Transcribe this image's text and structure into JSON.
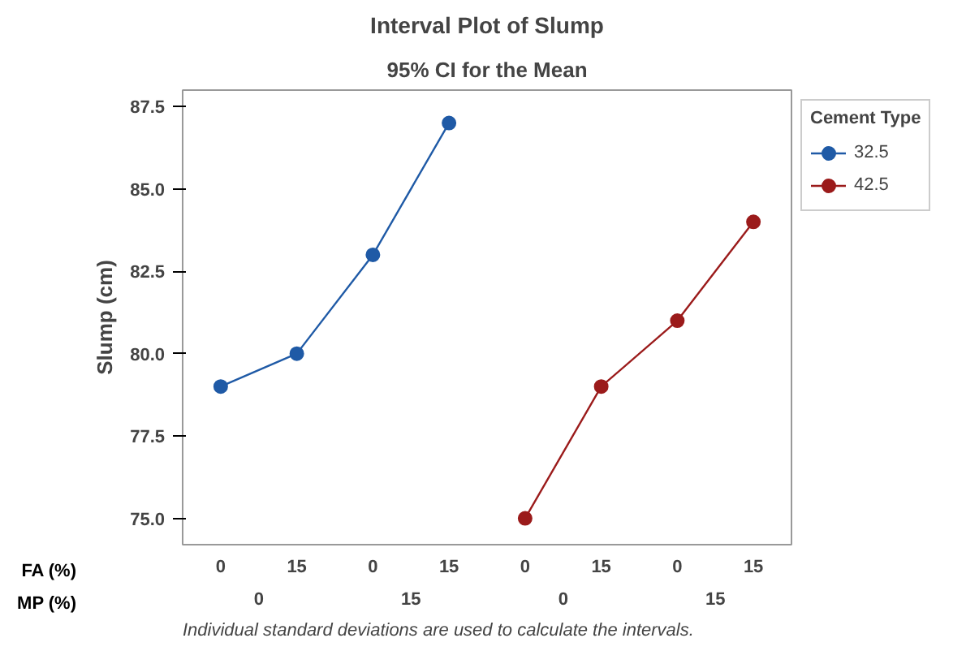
{
  "chart_data": {
    "type": "line",
    "title": "Interval Plot of Slump",
    "subtitle": "95% CI for the Mean",
    "ylabel": "Slump (cm)",
    "legend_title": "Cement Type",
    "categories": [
      "0",
      "15",
      "0",
      "15",
      "0",
      "15",
      "0",
      "15"
    ],
    "series": [
      {
        "name": "32.5",
        "color": "#1f5aa6",
        "values": [
          79,
          80,
          83,
          87,
          null,
          null,
          null,
          null
        ]
      },
      {
        "name": "42.5",
        "color": "#9b1b1b",
        "values": [
          null,
          null,
          null,
          null,
          75,
          79,
          81,
          84
        ]
      }
    ],
    "ylim": [
      74.2,
      88.0
    ],
    "yticks": [
      {
        "value": 75,
        "label": "75.0"
      },
      {
        "value": 77.5,
        "label": "77.5"
      },
      {
        "value": 80,
        "label": "80.0"
      },
      {
        "value": 82.5,
        "label": "82.5"
      },
      {
        "value": 85,
        "label": "85.0"
      },
      {
        "value": 87.5,
        "label": "87.5"
      }
    ],
    "marker": "circle",
    "grid": false,
    "legend": "right",
    "annotations": [
      "FA (%)",
      "MP (%)",
      "0",
      "15",
      "0",
      "15",
      "Individual standard deviations are used to calculate the intervals."
    ]
  }
}
